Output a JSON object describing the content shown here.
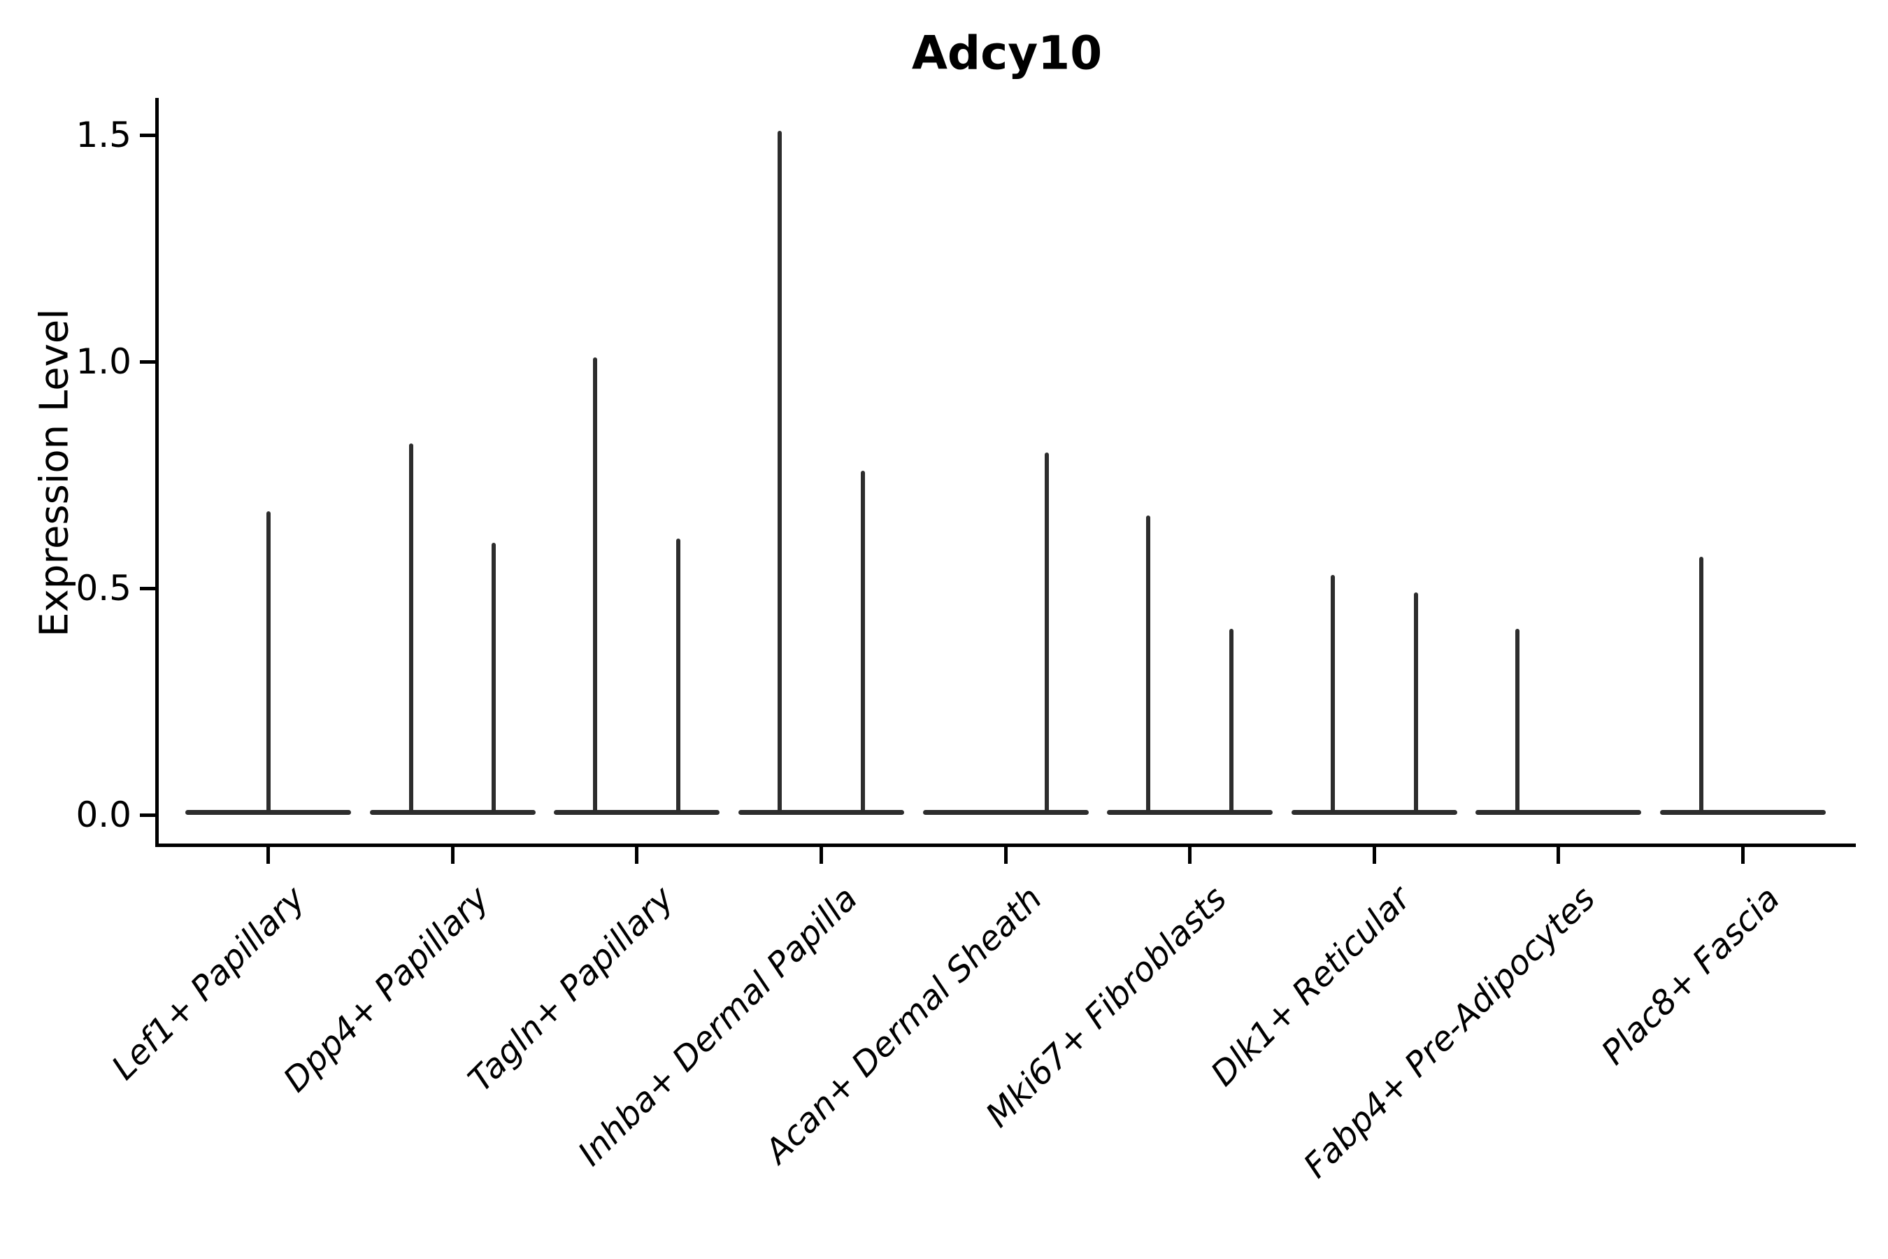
{
  "figure": {
    "title": "Adcy10",
    "y_axis_label": "Expression Level"
  },
  "chart_data": {
    "type": "violin",
    "title": "Adcy10",
    "xlabel": "",
    "ylabel": "Expression Level",
    "ytick_labels": [
      "0.0",
      "0.5",
      "1.0",
      "1.5"
    ],
    "ylim": [
      -0.07,
      1.58
    ],
    "grid": false,
    "legend": false,
    "orientation": "vertical",
    "style_note": "single-gene expression violin plot; each violin is collapsed to a flat horizontal base at 0 expression with thin vertical density spikes; most categories contain two adjacent half-width violins",
    "categories": [
      "Lef1+ Papillary",
      "Dpp4+ Papillary",
      "Tagln+ Papillary",
      "Inhba+ Dermal Papilla",
      "Acan+ Dermal Sheath",
      "Mki67+ Fibroblasts",
      "Dlk1+ Reticular",
      "Fabp4+ Pre-Adipocytes",
      "Plac8+ Fascia"
    ],
    "violins": [
      {
        "category": "Lef1+ Papillary",
        "spikes": [
          {
            "position": "center",
            "max_expression": 0.67
          }
        ]
      },
      {
        "category": "Dpp4+ Papillary",
        "spikes": [
          {
            "position": "left",
            "max_expression": 0.82
          },
          {
            "position": "right",
            "max_expression": 0.6
          }
        ]
      },
      {
        "category": "Tagln+ Papillary",
        "spikes": [
          {
            "position": "left",
            "max_expression": 1.01
          },
          {
            "position": "right",
            "max_expression": 0.61
          }
        ]
      },
      {
        "category": "Inhba+ Dermal Papilla",
        "spikes": [
          {
            "position": "left",
            "max_expression": 1.51
          },
          {
            "position": "right",
            "max_expression": 0.76
          }
        ]
      },
      {
        "category": "Acan+ Dermal Sheath",
        "spikes": [
          {
            "position": "right",
            "max_expression": 0.8
          }
        ]
      },
      {
        "category": "Mki67+ Fibroblasts",
        "spikes": [
          {
            "position": "left",
            "max_expression": 0.66
          },
          {
            "position": "right",
            "max_expression": 0.41
          }
        ]
      },
      {
        "category": "Dlk1+ Reticular",
        "spikes": [
          {
            "position": "left",
            "max_expression": 0.53
          },
          {
            "position": "right",
            "max_expression": 0.49
          }
        ]
      },
      {
        "category": "Fabp4+ Pre-Adipocytes",
        "spikes": [
          {
            "position": "left",
            "max_expression": 0.41
          }
        ]
      },
      {
        "category": "Plac8+ Fascia",
        "spikes": [
          {
            "position": "left",
            "max_expression": 0.57
          }
        ]
      }
    ],
    "colors": {
      "ink": "#2d2d2d",
      "axis": "#000000",
      "text": "#000000",
      "background": "#ffffff"
    }
  }
}
